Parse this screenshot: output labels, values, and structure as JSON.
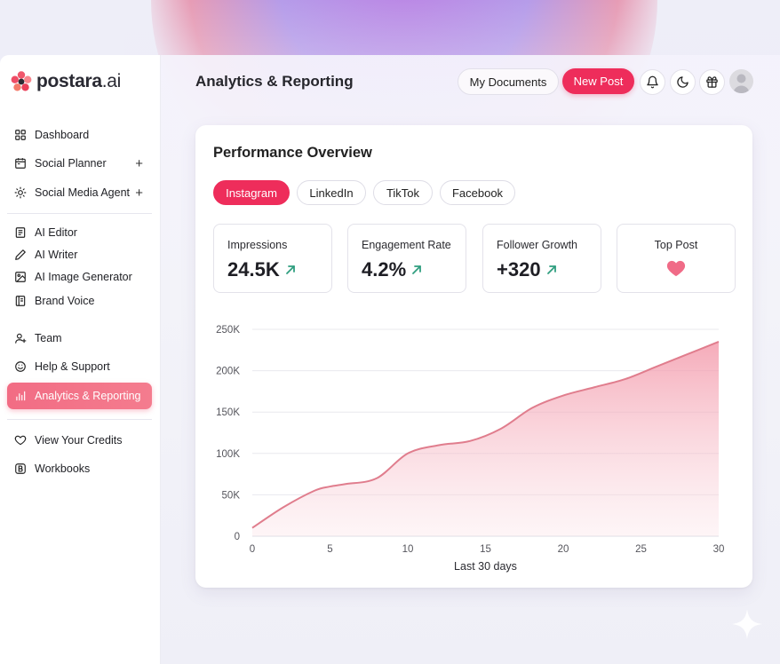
{
  "app": {
    "brand_name": "postara",
    "brand_suffix": ".ai",
    "page_title": "Analytics & Reporting"
  },
  "header": {
    "my_documents": "My Documents",
    "new_post": "New Post",
    "icons": [
      "bell-icon",
      "moon-icon",
      "gift-icon"
    ]
  },
  "sidebar": {
    "items": [
      {
        "label": "Dashboard",
        "icon": "grid-icon"
      },
      {
        "label": "Social Planner",
        "icon": "calendar-icon",
        "plus": "+"
      },
      {
        "label": "Social Media Agent",
        "icon": "sun-icon",
        "plus": "+"
      },
      {
        "label": "AI Editor",
        "icon": "document-icon"
      },
      {
        "label": "AI Writer",
        "icon": "pen-icon"
      },
      {
        "label": "AI Image Generator",
        "icon": "image-icon"
      },
      {
        "label": "Brand Voice",
        "icon": "book-icon"
      },
      {
        "label": "Team",
        "icon": "user-plus-icon"
      },
      {
        "label": "Help & Support",
        "icon": "support-icon"
      },
      {
        "label": "Analytics & Reporting",
        "icon": "bar-chart-icon",
        "active": true
      },
      {
        "label": "View Your Credits",
        "icon": "heart-icon"
      },
      {
        "label": "Workbooks",
        "icon": "workbook-icon"
      }
    ]
  },
  "overview": {
    "title": "Performance Overview",
    "tabs": [
      {
        "label": "Instagram",
        "active": true
      },
      {
        "label": "LinkedIn"
      },
      {
        "label": "TikTok"
      },
      {
        "label": "Facebook"
      }
    ],
    "metrics": [
      {
        "label": "Impressions",
        "value": "24.5K",
        "trend": "up"
      },
      {
        "label": "Engagement Rate",
        "value": "4.2%",
        "trend": "up"
      },
      {
        "label": "Follower Growth",
        "value": "+320",
        "trend": "up"
      },
      {
        "label": "Top Post",
        "icon": "heart-icon"
      }
    ],
    "colors": {
      "accent": "#ee2d5b",
      "trend_up": "#2f9e7f",
      "line": "#e07d8d"
    }
  },
  "chart_data": {
    "type": "area",
    "title": "",
    "xlabel": "Last 30 days",
    "ylabel": "",
    "x": [
      0,
      2,
      4,
      5,
      6,
      8,
      10,
      12,
      14,
      16,
      18,
      20,
      22,
      24,
      26,
      28,
      30
    ],
    "values": [
      10000,
      35000,
      55000,
      60000,
      63000,
      70000,
      100000,
      110000,
      115000,
      130000,
      155000,
      170000,
      180000,
      190000,
      205000,
      220000,
      235000
    ],
    "xlim": [
      0,
      30
    ],
    "ylim": [
      0,
      250000
    ],
    "x_ticks": [
      0,
      5,
      10,
      15,
      20,
      25,
      30
    ],
    "y_ticks": [
      0,
      50000,
      100000,
      150000,
      200000,
      250000
    ],
    "y_tick_labels": [
      "0",
      "50K",
      "100K",
      "150K",
      "200K",
      "250K"
    ],
    "grid": true
  }
}
